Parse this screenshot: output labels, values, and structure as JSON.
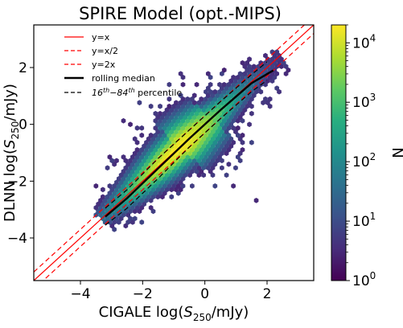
{
  "chart_data": {
    "type": "heatmap",
    "title": "SPIRE Model (opt.-MIPS)",
    "xlabel_prefix": "CIGALE log(",
    "xlabel_var": "S",
    "xlabel_sub": "250",
    "xlabel_suffix": "/mJy)",
    "ylabel_prefix": "DLNN log(",
    "ylabel_var": "S",
    "ylabel_sub": "250",
    "ylabel_suffix": "/mJy)",
    "xlim": [
      -5.5,
      3.5
    ],
    "ylim": [
      -5.5,
      3.5
    ],
    "xticks": [
      -4,
      -2,
      0,
      2
    ],
    "yticks": [
      -4,
      -2,
      0,
      2
    ],
    "xtick_labels": [
      "−4",
      "−2",
      "0",
      "2"
    ],
    "ytick_labels": [
      "−4",
      "−2",
      "0",
      "2"
    ],
    "grid": false,
    "legend_position": "top-left",
    "legend": [
      {
        "label": "y=x",
        "color": "#ff0000",
        "style": "solid"
      },
      {
        "label": "y=x/2",
        "color": "#ff0000",
        "style": "dashed"
      },
      {
        "label": "y=2x",
        "color": "#ff0000",
        "style": "dashed"
      },
      {
        "label": "rolling median",
        "color": "#000000",
        "style": "solid-thick"
      },
      {
        "label": "16th−84th percentile",
        "color": "#000000",
        "style": "dashed"
      }
    ],
    "legend_percentile": {
      "pre": "16",
      "sup1": "th",
      "mid": "−84",
      "sup2": "th",
      "post": " percentile"
    },
    "reference_lines": [
      {
        "name": "y=x",
        "offset": 0
      },
      {
        "name": "y=x/2",
        "offset": -0.301
      },
      {
        "name": "y=2x",
        "offset": 0.301
      }
    ],
    "rolling_median": {
      "x": [
        -3.2,
        -2.5,
        -1.5,
        -0.5,
        0.5,
        1.5,
        2.2
      ],
      "y": [
        -3.25,
        -2.6,
        -1.55,
        -0.5,
        0.5,
        1.45,
        1.9
      ]
    },
    "percentile_16": {
      "x": [
        -3.2,
        -2.5,
        -1.5,
        -0.5,
        0.5,
        1.5,
        2.0
      ],
      "y": [
        -3.55,
        -2.95,
        -1.9,
        -0.8,
        0.2,
        1.15,
        1.55
      ]
    },
    "percentile_84": {
      "x": [
        -3.2,
        -2.5,
        -1.5,
        -0.5,
        0.5,
        1.5,
        2.0
      ],
      "y": [
        -2.95,
        -2.3,
        -1.2,
        -0.2,
        0.8,
        1.75,
        2.2
      ]
    },
    "density_center_line": {
      "slope": 1.0,
      "intercept": 0.0
    },
    "colorbar": {
      "label": "N",
      "scale": "log",
      "min": 1,
      "max": 20000,
      "ticks": [
        {
          "value": 1,
          "base": "10",
          "exp": "0"
        },
        {
          "value": 10,
          "base": "10",
          "exp": "1"
        },
        {
          "value": 100,
          "base": "10",
          "exp": "2"
        },
        {
          "value": 1000,
          "base": "10",
          "exp": "3"
        },
        {
          "value": 10000,
          "base": "10",
          "exp": "4"
        }
      ],
      "colormap": "viridis"
    }
  }
}
